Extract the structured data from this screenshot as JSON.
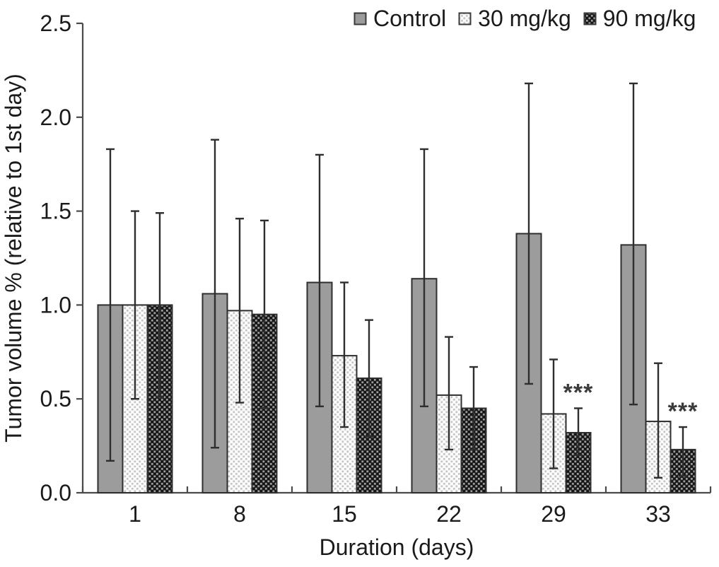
{
  "figure": {
    "background": "#ffffff",
    "axis_color": "#4a4a4a",
    "bar_border_color": "#2e2e2e",
    "error_bar_color": "#2e2e2e"
  },
  "chart_data": {
    "type": "bar",
    "title": "",
    "xlabel": "Duration (days)",
    "ylabel": "Tumor volume % (relative to 1st day)",
    "categories": [
      "1",
      "8",
      "15",
      "22",
      "29",
      "33"
    ],
    "ylim": [
      0,
      2.5
    ],
    "y_ticks": [
      "0.0",
      "0.5",
      "1.0",
      "1.5",
      "2.0",
      "2.5"
    ],
    "grid": false,
    "legend_position": "top-right",
    "series": [
      {
        "name": "Control",
        "pattern": "solid-gray",
        "color": "#9c9c9c",
        "values": [
          1.0,
          1.06,
          1.12,
          1.14,
          1.38,
          1.32
        ],
        "error_low": [
          0.17,
          0.24,
          0.46,
          0.46,
          0.58,
          0.47
        ],
        "error_high": [
          1.83,
          1.88,
          1.8,
          1.83,
          2.18,
          2.18
        ]
      },
      {
        "name": "30 mg/kg",
        "pattern": "light-dot-checker",
        "color": "#ffffff",
        "values": [
          1.0,
          0.97,
          0.73,
          0.52,
          0.42,
          0.38
        ],
        "error_low": [
          0.5,
          0.48,
          0.35,
          0.23,
          0.13,
          0.08
        ],
        "error_high": [
          1.5,
          1.46,
          1.12,
          0.83,
          0.71,
          0.69
        ]
      },
      {
        "name": "90 mg/kg",
        "pattern": "dark-checker",
        "color": "#1f1f1f",
        "values": [
          1.0,
          0.95,
          0.61,
          0.45,
          0.32,
          0.23
        ],
        "error_low": [
          0.51,
          0.45,
          0.3,
          0.23,
          0.2,
          0.09
        ],
        "error_high": [
          1.49,
          1.45,
          0.92,
          0.67,
          0.45,
          0.35
        ]
      }
    ],
    "annotations": [
      {
        "category": "29",
        "series": "90 mg/kg",
        "text": "***"
      },
      {
        "category": "33",
        "series": "90 mg/kg",
        "text": "***"
      }
    ]
  }
}
